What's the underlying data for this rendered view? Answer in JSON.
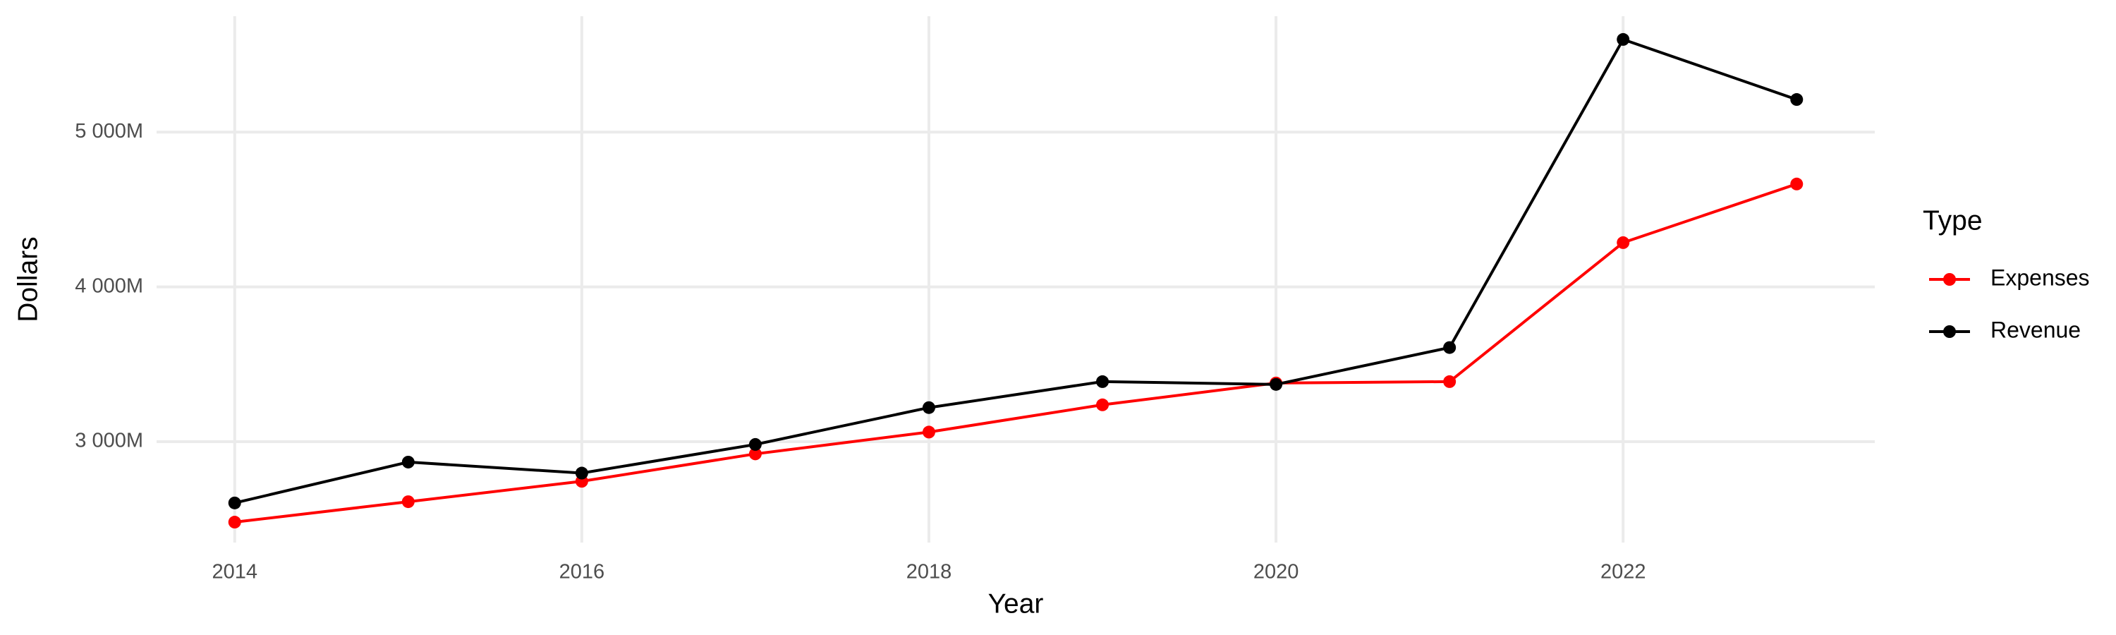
{
  "chart_data": {
    "type": "line",
    "x_label": "Year",
    "y_label": "Dollars",
    "legend_title": "Type",
    "legend_position": "right",
    "grid": true,
    "x": [
      2014,
      2015,
      2016,
      2017,
      2018,
      2019,
      2020,
      2021,
      2022,
      2023
    ],
    "series": [
      {
        "name": "Expenses",
        "color": "#ff0000",
        "values": [
          2480,
          2612,
          2744,
          2921,
          3062,
          3238,
          3379,
          3388,
          4286,
          4665
        ]
      },
      {
        "name": "Revenue",
        "color": "#000000",
        "values": [
          2604,
          2868,
          2797,
          2982,
          3220,
          3388,
          3370,
          3608,
          5599,
          5211
        ]
      }
    ],
    "xlim": [
      2013.55,
      2023.45
    ],
    "xticks": [
      2014,
      2016,
      2018,
      2020,
      2022
    ],
    "ylim": [
      2348,
      5749
    ],
    "yticks": [
      {
        "value": 3000,
        "label": "3 000M"
      },
      {
        "value": 4000,
        "label": "4 000M"
      },
      {
        "value": 5000,
        "label": "5 000M"
      }
    ]
  }
}
